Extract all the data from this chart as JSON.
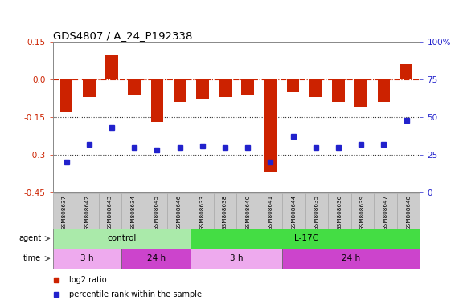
{
  "title": "GDS4807 / A_24_P192338",
  "samples": [
    "GSM808637",
    "GSM808642",
    "GSM808643",
    "GSM808634",
    "GSM808645",
    "GSM808646",
    "GSM808633",
    "GSM808638",
    "GSM808640",
    "GSM808641",
    "GSM808644",
    "GSM808635",
    "GSM808636",
    "GSM808639",
    "GSM808647",
    "GSM808648"
  ],
  "log2_ratio": [
    -0.13,
    -0.07,
    0.1,
    -0.06,
    -0.17,
    -0.09,
    -0.08,
    -0.07,
    -0.06,
    -0.37,
    -0.05,
    -0.07,
    -0.09,
    -0.11,
    -0.09,
    0.06
  ],
  "percentile": [
    20,
    32,
    43,
    30,
    28,
    30,
    31,
    30,
    30,
    20,
    37,
    30,
    30,
    32,
    32,
    48
  ],
  "ylim_left": [
    -0.45,
    0.15
  ],
  "ylim_right": [
    0,
    100
  ],
  "yticks_left": [
    0.15,
    0.0,
    -0.15,
    -0.3,
    -0.45
  ],
  "yticks_right": [
    100,
    75,
    50,
    25,
    0
  ],
  "bar_color": "#cc2200",
  "dot_color": "#2222cc",
  "hline_color": "#cc2200",
  "dotted_line_color": "#333333",
  "agent_groups": [
    {
      "label": "control",
      "start": 0,
      "end": 6,
      "color": "#aaeaaa"
    },
    {
      "label": "IL-17C",
      "start": 6,
      "end": 16,
      "color": "#44dd44"
    }
  ],
  "time_groups": [
    {
      "label": "3 h",
      "start": 0,
      "end": 3,
      "color": "#eeaaee"
    },
    {
      "label": "24 h",
      "start": 3,
      "end": 6,
      "color": "#cc44cc"
    },
    {
      "label": "3 h",
      "start": 6,
      "end": 10,
      "color": "#eeaaee"
    },
    {
      "label": "24 h",
      "start": 10,
      "end": 16,
      "color": "#cc44cc"
    }
  ],
  "legend_items": [
    {
      "label": "log2 ratio",
      "color": "#cc2200"
    },
    {
      "label": "percentile rank within the sample",
      "color": "#2222cc"
    }
  ],
  "bg_color": "#ffffff",
  "xlabels_bg": "#cccccc",
  "xlabels_border": "#aaaaaa"
}
